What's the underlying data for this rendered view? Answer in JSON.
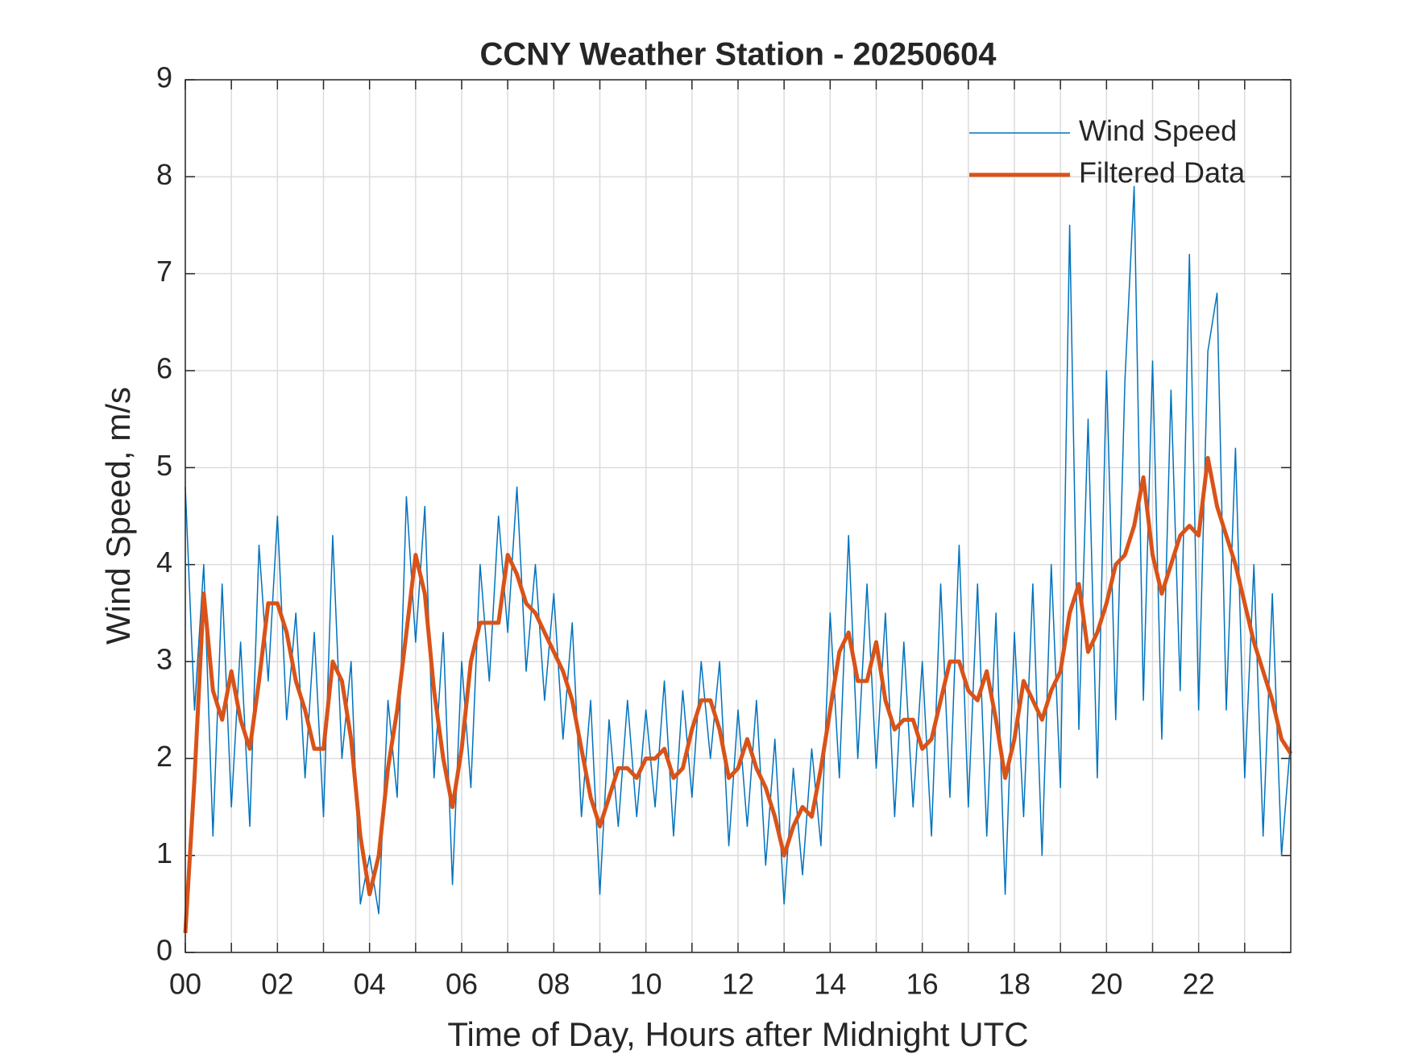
{
  "chart_data": {
    "type": "line",
    "title": "CCNY Weather Station - 20250604",
    "xlabel": "Time of Day, Hours after Midnight UTC",
    "ylabel": "Wind Speed, m/s",
    "xlim": [
      0,
      24
    ],
    "ylim": [
      0,
      9
    ],
    "xticks": [
      {
        "value": 0,
        "label": "00"
      },
      {
        "value": 2,
        "label": "02"
      },
      {
        "value": 4,
        "label": "04"
      },
      {
        "value": 6,
        "label": "06"
      },
      {
        "value": 8,
        "label": "08"
      },
      10,
      12,
      14,
      16,
      18,
      20,
      22
    ],
    "xminorticks": [
      1,
      3,
      5,
      7,
      9,
      11,
      13,
      15,
      17,
      19,
      21,
      23
    ],
    "yticks": [
      0,
      1,
      2,
      3,
      4,
      5,
      6,
      7,
      8,
      9
    ],
    "grid": true,
    "legend": "upper right",
    "x": [
      0,
      0.2,
      0.4,
      0.6,
      0.8,
      1,
      1.2,
      1.4,
      1.6,
      1.8,
      2,
      2.2,
      2.4,
      2.6,
      2.8,
      3,
      3.2,
      3.4,
      3.6,
      3.8,
      4,
      4.2,
      4.4,
      4.6,
      4.8,
      5,
      5.2,
      5.4,
      5.6,
      5.8,
      6,
      6.2,
      6.4,
      6.6,
      6.8,
      7,
      7.2,
      7.4,
      7.6,
      7.8,
      8,
      8.2,
      8.4,
      8.6,
      8.8,
      9,
      9.2,
      9.4,
      9.6,
      9.8,
      10,
      10.2,
      10.4,
      10.6,
      10.8,
      11,
      11.2,
      11.4,
      11.6,
      11.8,
      12,
      12.2,
      12.4,
      12.6,
      12.8,
      13,
      13.2,
      13.4,
      13.6,
      13.8,
      14,
      14.2,
      14.4,
      14.6,
      14.8,
      15,
      15.2,
      15.4,
      15.6,
      15.8,
      16,
      16.2,
      16.4,
      16.6,
      16.8,
      17,
      17.2,
      17.4,
      17.6,
      17.8,
      18,
      18.2,
      18.4,
      18.6,
      18.8,
      19,
      19.2,
      19.4,
      19.6,
      19.8,
      20,
      20.2,
      20.4,
      20.6,
      20.8,
      21,
      21.2,
      21.4,
      21.6,
      21.8,
      22,
      22.2,
      22.4,
      22.6,
      22.8,
      23,
      23.2,
      23.4,
      23.6,
      23.8,
      24
    ],
    "series": [
      {
        "name": "Wind Speed",
        "color": "#0072BD",
        "width": 1.5,
        "values": [
          4.8,
          2.5,
          4.0,
          1.2,
          3.8,
          1.5,
          3.2,
          1.3,
          4.2,
          2.8,
          4.5,
          2.4,
          3.5,
          1.8,
          3.3,
          1.4,
          4.3,
          2.0,
          3.0,
          0.5,
          1.0,
          0.4,
          2.6,
          1.6,
          4.7,
          3.2,
          4.6,
          1.8,
          3.3,
          0.7,
          3.0,
          1.7,
          4.0,
          2.8,
          4.5,
          3.3,
          4.8,
          2.9,
          4.0,
          2.6,
          3.7,
          2.2,
          3.4,
          1.4,
          2.6,
          0.6,
          2.4,
          1.3,
          2.6,
          1.4,
          2.5,
          1.5,
          2.8,
          1.2,
          2.7,
          1.6,
          3.0,
          2.0,
          3.0,
          1.1,
          2.5,
          1.3,
          2.6,
          0.9,
          2.2,
          0.5,
          1.9,
          0.8,
          2.1,
          1.1,
          3.5,
          1.8,
          4.3,
          2.0,
          3.8,
          1.9,
          3.5,
          1.4,
          3.2,
          1.5,
          3.0,
          1.2,
          3.8,
          1.6,
          4.2,
          1.5,
          3.8,
          1.2,
          3.5,
          0.6,
          3.3,
          1.4,
          3.8,
          1.0,
          4.0,
          1.7,
          7.5,
          2.3,
          5.5,
          1.8,
          6.0,
          2.4,
          5.9,
          7.9,
          2.6,
          6.1,
          2.2,
          5.8,
          2.7,
          7.2,
          2.5,
          6.2,
          6.8,
          2.5,
          5.2,
          1.8,
          4.0,
          1.2,
          3.7,
          1.0,
          2.2
        ]
      },
      {
        "name": "Filtered Data",
        "color": "#D95319",
        "width": 5,
        "values": [
          0.2,
          1.8,
          3.7,
          2.7,
          2.4,
          2.9,
          2.4,
          2.1,
          2.8,
          3.6,
          3.6,
          3.3,
          2.8,
          2.5,
          2.1,
          2.1,
          3.0,
          2.8,
          2.2,
          1.2,
          0.6,
          1.0,
          1.9,
          2.5,
          3.3,
          4.1,
          3.7,
          2.7,
          2.0,
          1.5,
          2.1,
          3.0,
          3.4,
          3.4,
          3.4,
          4.1,
          3.9,
          3.6,
          3.5,
          3.3,
          3.1,
          2.9,
          2.6,
          2.1,
          1.6,
          1.3,
          1.6,
          1.9,
          1.9,
          1.8,
          2.0,
          2.0,
          2.1,
          1.8,
          1.9,
          2.3,
          2.6,
          2.6,
          2.3,
          1.8,
          1.9,
          2.2,
          1.9,
          1.7,
          1.4,
          1.0,
          1.3,
          1.5,
          1.4,
          1.9,
          2.5,
          3.1,
          3.3,
          2.8,
          2.8,
          3.2,
          2.6,
          2.3,
          2.4,
          2.4,
          2.1,
          2.2,
          2.6,
          3.0,
          3.0,
          2.7,
          2.6,
          2.9,
          2.4,
          1.8,
          2.2,
          2.8,
          2.6,
          2.4,
          2.7,
          2.9,
          3.5,
          3.8,
          3.1,
          3.3,
          3.6,
          4.0,
          4.1,
          4.4,
          4.9,
          4.1,
          3.7,
          4.0,
          4.3,
          4.4,
          4.3,
          5.1,
          4.6,
          4.3,
          4.0,
          3.6,
          3.2,
          2.9,
          2.6,
          2.2,
          2.05
        ]
      }
    ]
  }
}
